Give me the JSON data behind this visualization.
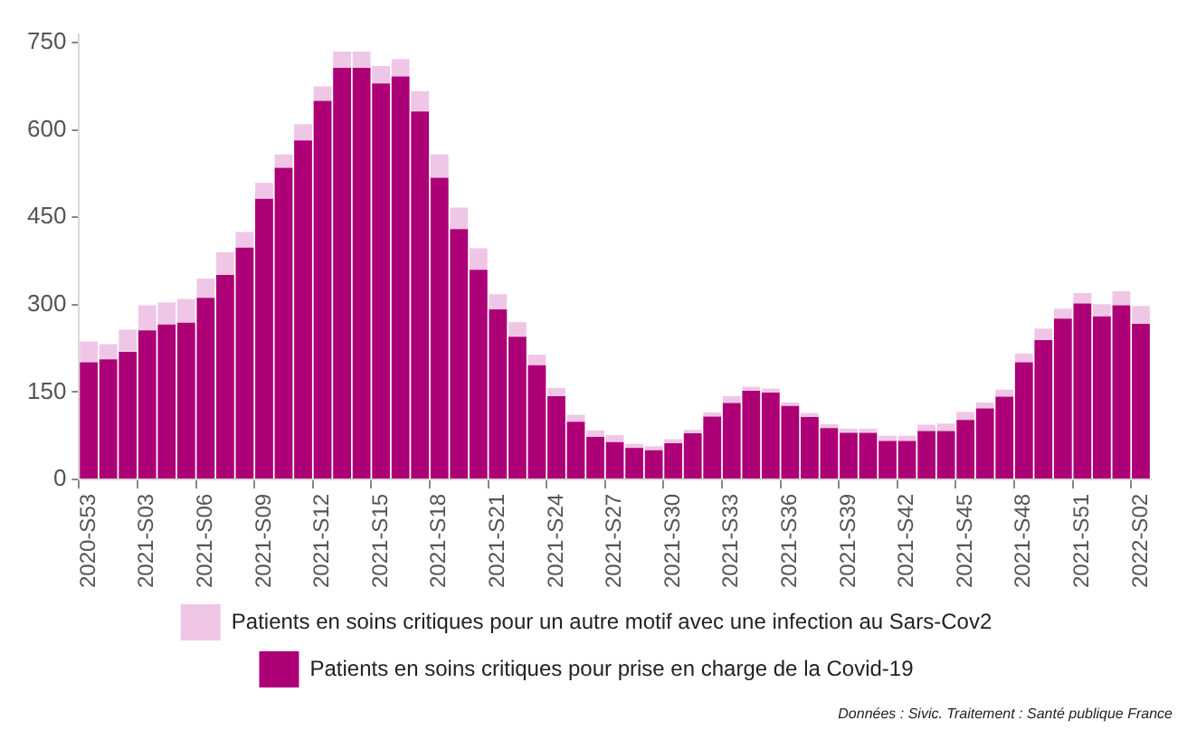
{
  "chart_data": {
    "type": "bar",
    "stacked": true,
    "legend": "bottom",
    "grid": false,
    "categories": [
      "2020-S53",
      null,
      null,
      "2021-S03",
      null,
      null,
      "2021-S06",
      null,
      null,
      "2021-S09",
      null,
      null,
      "2021-S12",
      null,
      null,
      "2021-S15",
      null,
      null,
      "2021-S18",
      null,
      null,
      "2021-S21",
      null,
      null,
      "2021-S24",
      null,
      null,
      "2021-S27",
      null,
      null,
      "2021-S30",
      null,
      null,
      "2021-S33",
      null,
      null,
      "2021-S36",
      null,
      null,
      "2021-S39",
      null,
      null,
      "2021-S42",
      null,
      null,
      "2021-S45",
      null,
      null,
      "2021-S48",
      null,
      null,
      "2021-S51",
      null,
      null,
      "2022-S02"
    ],
    "ylim": [
      0,
      765
    ],
    "yticks": [
      0,
      150,
      300,
      450,
      600,
      750
    ],
    "series": [
      {
        "name": "Patients en soins critiques pour prise en charge de la Covid-19",
        "color": "#ad0077",
        "values": [
          201,
          206,
          219,
          256,
          266,
          269,
          312,
          351,
          398,
          482,
          535,
          582,
          650,
          707,
          707,
          680,
          692,
          632,
          518,
          430,
          360,
          292,
          245,
          196,
          143,
          99,
          73,
          64,
          54,
          50,
          62,
          79,
          108,
          131,
          152,
          149,
          126,
          107,
          88,
          80,
          80,
          66,
          66,
          83,
          83,
          102,
          122,
          142,
          201,
          239,
          276,
          302,
          280,
          299,
          267
        ]
      },
      {
        "name": "Patients en soins critiques pour un autre motif avec une infection au Sars-Cov2",
        "color": "#f0c6e6",
        "values": [
          36,
          26,
          38,
          43,
          38,
          41,
          33,
          39,
          27,
          27,
          23,
          28,
          25,
          28,
          28,
          30,
          30,
          35,
          40,
          37,
          37,
          26,
          25,
          18,
          14,
          12,
          11,
          12,
          7,
          7,
          7,
          6,
          7,
          12,
          7,
          7,
          6,
          7,
          7,
          7,
          7,
          9,
          9,
          11,
          13,
          14,
          10,
          12,
          15,
          20,
          17,
          18,
          21,
          24,
          31
        ]
      }
    ],
    "annotations": [
      "Données : Sivic. Traitement : Santé publique France"
    ]
  }
}
